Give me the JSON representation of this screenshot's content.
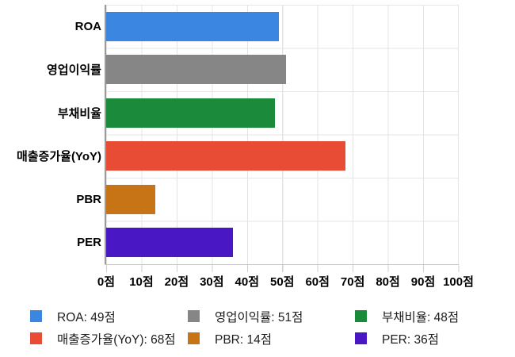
{
  "chart_data": {
    "type": "bar",
    "orientation": "horizontal",
    "title": "",
    "categories": [
      "ROA",
      "영업이익률",
      "부채비율",
      "매출증가율(YoY)",
      "PBR",
      "PER"
    ],
    "values": [
      49,
      51,
      48,
      68,
      14,
      36
    ],
    "unit": "점",
    "colors": [
      "#3B86E1",
      "#868686",
      "#1B8A3A",
      "#E84C35",
      "#C77417",
      "#4A17C4"
    ],
    "xlim": [
      0,
      100
    ],
    "x_tick_labels": [
      "0점",
      "10점",
      "20점",
      "30점",
      "40점",
      "50점",
      "60점",
      "70점",
      "80점",
      "90점",
      "100점"
    ],
    "grid": true,
    "legend_position": "bottom",
    "legend_labels": [
      "ROA: 49점",
      "영업이익률: 51점",
      "부채비율: 48점",
      "매출증가율(YoY): 68점",
      "PBR: 14점",
      "PER: 36점"
    ],
    "axis_color": "#9a9a9a",
    "gridline_color": "#e4e4e4"
  }
}
